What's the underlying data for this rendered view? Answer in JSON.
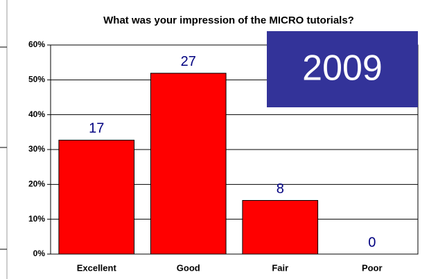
{
  "chart_data": {
    "type": "bar",
    "title": "What was your impression of the MICRO tutorials?",
    "categories": [
      "Excellent",
      "Good",
      "Fair",
      "Poor"
    ],
    "values": [
      32.7,
      51.9,
      15.4,
      0
    ],
    "counts": [
      17,
      27,
      8,
      0
    ],
    "color": "#ff0000",
    "ylim": [
      0,
      60
    ],
    "yticks": [
      {
        "value": 0,
        "label": "0%"
      },
      {
        "value": 10,
        "label": "10%"
      },
      {
        "value": 20,
        "label": "20%"
      },
      {
        "value": 30,
        "label": "30%"
      },
      {
        "value": 40,
        "label": "40%"
      },
      {
        "value": 50,
        "label": "50%"
      },
      {
        "value": 60,
        "label": "60%"
      }
    ],
    "grid": true,
    "annotation": "2009"
  }
}
